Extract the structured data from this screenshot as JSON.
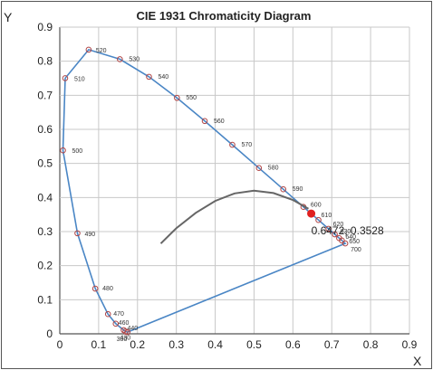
{
  "chart_data": {
    "type": "scatter",
    "title": "CIE 1931 Chromaticity Diagram",
    "xlabel": "X",
    "ylabel": "Y",
    "xlim": [
      0,
      0.9
    ],
    "ylim": [
      0,
      0.9
    ],
    "x_ticks": [
      "0",
      "0.1",
      "0.2",
      "0.3",
      "0.4",
      "0.5",
      "0.6",
      "0.7",
      "0.8",
      "0.9"
    ],
    "y_ticks": [
      "0",
      "0.1",
      "0.2",
      "0.3",
      "0.4",
      "0.5",
      "0.6",
      "0.7",
      "0.8",
      "0.9"
    ],
    "y_ticks_display": [
      "0",
      "0.1",
      "0.2",
      "0.3",
      "0.4",
      "0.5",
      "0.6",
      "0.7",
      "0.8",
      "0.9"
    ],
    "grid": true,
    "spectral_locus": [
      {
        "label": "380",
        "x": 0.1741,
        "y": 0.005
      },
      {
        "label": "430",
        "x": 0.169,
        "y": 0.0069
      },
      {
        "label": "440",
        "x": 0.1644,
        "y": 0.0109
      },
      {
        "label": "460",
        "x": 0.144,
        "y": 0.0297
      },
      {
        "label": "470",
        "x": 0.1241,
        "y": 0.0578
      },
      {
        "label": "480",
        "x": 0.0913,
        "y": 0.1327
      },
      {
        "label": "490",
        "x": 0.0454,
        "y": 0.295
      },
      {
        "label": "500",
        "x": 0.0082,
        "y": 0.5384
      },
      {
        "label": "510",
        "x": 0.0139,
        "y": 0.7502
      },
      {
        "label": "520",
        "x": 0.0743,
        "y": 0.8338
      },
      {
        "label": "530",
        "x": 0.1547,
        "y": 0.8059
      },
      {
        "label": "540",
        "x": 0.2296,
        "y": 0.7543
      },
      {
        "label": "550",
        "x": 0.3016,
        "y": 0.6923
      },
      {
        "label": "560",
        "x": 0.3731,
        "y": 0.6245
      },
      {
        "label": "570",
        "x": 0.4441,
        "y": 0.5547
      },
      {
        "label": "580",
        "x": 0.5125,
        "y": 0.4866
      },
      {
        "label": "590",
        "x": 0.5752,
        "y": 0.4242
      },
      {
        "label": "600",
        "x": 0.627,
        "y": 0.3725
      },
      {
        "label": "610",
        "x": 0.6658,
        "y": 0.334
      },
      {
        "label": "620",
        "x": 0.6915,
        "y": 0.3083
      },
      {
        "label": "630",
        "x": 0.7079,
        "y": 0.292
      },
      {
        "label": "640",
        "x": 0.719,
        "y": 0.2809
      },
      {
        "label": "650",
        "x": 0.726,
        "y": 0.274
      },
      {
        "label": "700",
        "x": 0.7347,
        "y": 0.2653
      }
    ],
    "planckian_locus": [
      {
        "x": 0.26,
        "y": 0.265
      },
      {
        "x": 0.3,
        "y": 0.31
      },
      {
        "x": 0.35,
        "y": 0.355
      },
      {
        "x": 0.4,
        "y": 0.39
      },
      {
        "x": 0.45,
        "y": 0.412
      },
      {
        "x": 0.5,
        "y": 0.42
      },
      {
        "x": 0.55,
        "y": 0.413
      },
      {
        "x": 0.6,
        "y": 0.393
      },
      {
        "x": 0.64,
        "y": 0.367
      }
    ],
    "highlight_point": {
      "x": 0.6472,
      "y": 0.3528,
      "label": "0.6472, 0.3528",
      "color": "#e02020"
    },
    "colors": {
      "locus": "#4a86c5",
      "markers": "#b04545",
      "planck": "#666666"
    }
  }
}
